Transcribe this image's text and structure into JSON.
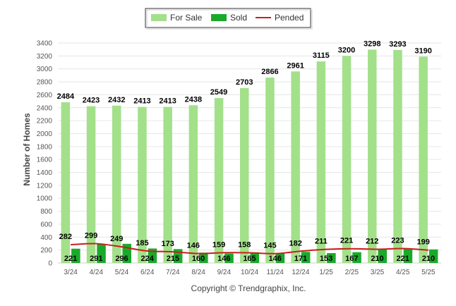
{
  "chart_data": {
    "type": "bar",
    "categories": [
      "3/24",
      "4/24",
      "5/24",
      "6/24",
      "7/24",
      "8/24",
      "9/24",
      "10/24",
      "11/24",
      "12/24",
      "1/25",
      "2/25",
      "3/25",
      "4/25",
      "5/25"
    ],
    "series": [
      {
        "name": "For Sale",
        "type": "bar",
        "color": "#a3e08a",
        "values": [
          2484,
          2423,
          2432,
          2413,
          2413,
          2438,
          2549,
          2703,
          2866,
          2961,
          3115,
          3200,
          3298,
          3293,
          3190
        ]
      },
      {
        "name": "Sold",
        "type": "bar",
        "color": "#1aaa2a",
        "values": [
          221,
          291,
          296,
          224,
          215,
          160,
          146,
          165,
          146,
          171,
          153,
          167,
          210,
          221,
          210
        ]
      },
      {
        "name": "Pended",
        "type": "line",
        "color": "#c81e1e",
        "values": [
          282,
          299,
          249,
          185,
          173,
          146,
          159,
          158,
          145,
          182,
          211,
          221,
          212,
          223,
          199
        ]
      }
    ],
    "ylabel": "Number of Homes",
    "xlabel": "",
    "ylim": [
      0,
      3400
    ],
    "yticks": [
      0,
      200,
      400,
      600,
      800,
      1000,
      1200,
      1400,
      1600,
      1800,
      2000,
      2200,
      2400,
      2600,
      2800,
      3000,
      3200,
      3400
    ],
    "grid": true,
    "legend_position": "top-center"
  },
  "footer": {
    "copyright": "Copyright © Trendgraphix, Inc."
  }
}
